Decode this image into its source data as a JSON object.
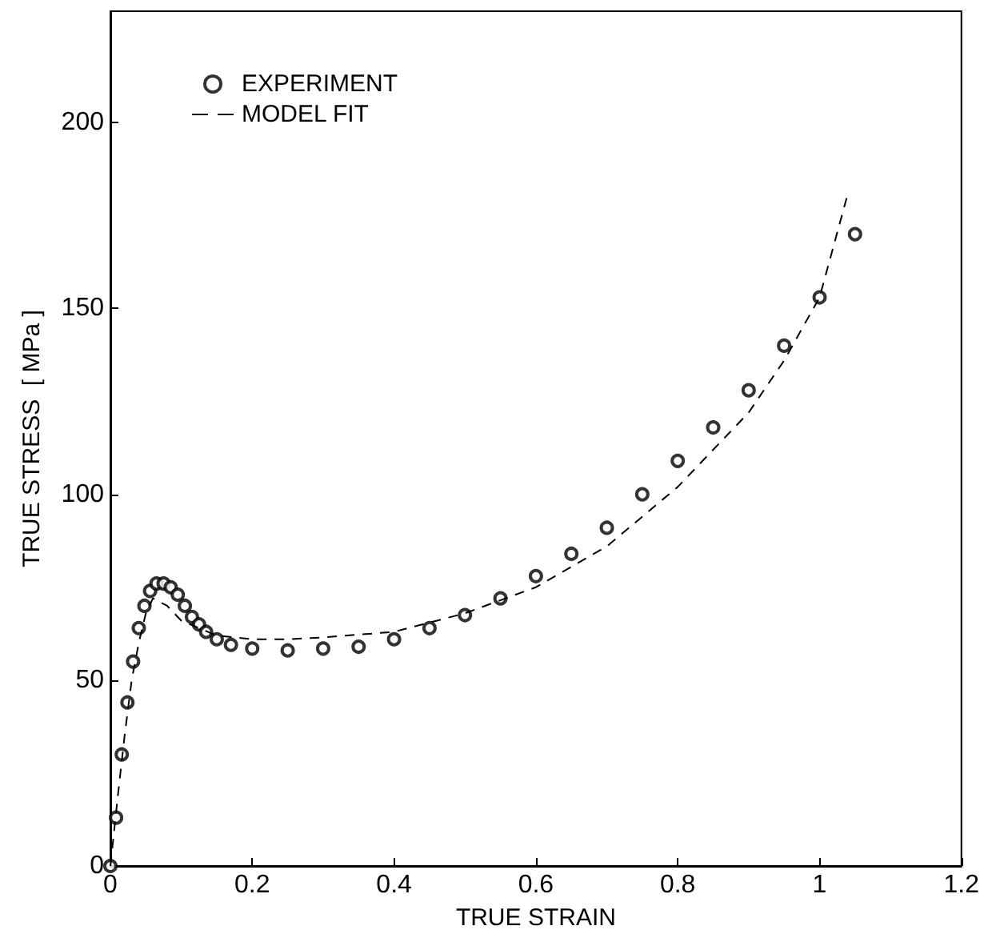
{
  "chart_data": {
    "type": "scatter",
    "xlabel": "TRUE STRAIN",
    "ylabel": "TRUE STRESS  [ MPa ]",
    "xlim": [
      0,
      1.2
    ],
    "xticks": [
      0,
      0.2,
      0.4,
      0.6,
      0.8,
      1,
      1.2
    ],
    "ylim": [
      0,
      230
    ],
    "yticks": [
      0,
      50,
      100,
      150,
      200
    ],
    "grid": false,
    "legend": "top left",
    "marker": "circle",
    "series": [
      {
        "name": "EXPERIMENT",
        "type": "scatter",
        "color": "#000000",
        "x": [
          0,
          0.008,
          0.016,
          0.024,
          0.032,
          0.04,
          0.048,
          0.056,
          0.065,
          0.075,
          0.085,
          0.095,
          0.105,
          0.115,
          0.125,
          0.135,
          0.15,
          0.17,
          0.2,
          0.25,
          0.3,
          0.35,
          0.4,
          0.45,
          0.5,
          0.55,
          0.6,
          0.65,
          0.7,
          0.75,
          0.8,
          0.85,
          0.9,
          0.95,
          1.0,
          1.05
        ],
        "values": [
          0,
          13,
          30,
          44,
          55,
          64,
          70,
          74,
          76,
          76,
          75,
          73,
          70,
          67,
          65,
          63,
          61,
          59.5,
          58.5,
          58,
          58.5,
          59,
          61,
          64,
          67.5,
          72,
          78,
          84,
          91,
          100,
          109,
          118,
          128,
          140,
          153,
          170
        ]
      },
      {
        "name": "MODEL FIT",
        "type": "line",
        "line_style": "dashed",
        "marker": "none",
        "color": "#000000",
        "x": [
          0,
          0.01,
          0.02,
          0.03,
          0.04,
          0.05,
          0.06,
          0.08,
          0.1,
          0.15,
          0.2,
          0.25,
          0.3,
          0.4,
          0.5,
          0.6,
          0.7,
          0.8,
          0.9,
          0.95,
          1.0,
          1.04
        ],
        "values": [
          0,
          18,
          35,
          50,
          60,
          68,
          72,
          70,
          66,
          62,
          61,
          61,
          61.5,
          63,
          68,
          75,
          86,
          102,
          122,
          136,
          153,
          181
        ]
      }
    ]
  }
}
